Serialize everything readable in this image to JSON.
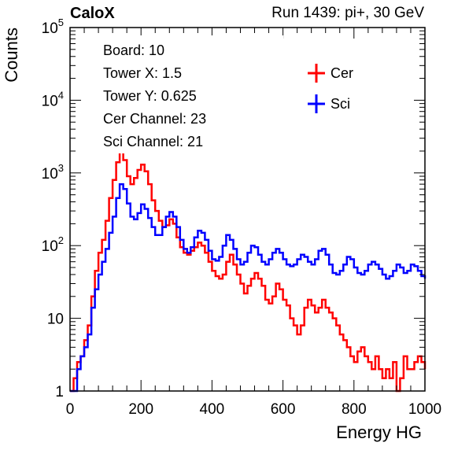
{
  "header": {
    "brand": "CaloX",
    "run_info": "Run 1439: pi+, 30 GeV"
  },
  "info_box": {
    "lines": [
      "Board: 10",
      "Tower X: 1.5",
      "Tower Y: 0.625",
      "Cer Channel: 23",
      "Sci Channel: 21"
    ]
  },
  "chart_data": {
    "type": "line",
    "xlabel": "Energy HG",
    "ylabel": "Counts",
    "xlim": [
      0,
      1000
    ],
    "ylim": [
      1,
      100000
    ],
    "y_scale": "log",
    "grid": false,
    "legend_position": "top-right",
    "x_ticks": [
      "0",
      "200",
      "400",
      "600",
      "800",
      "1000"
    ],
    "y_ticks": [
      {
        "value": 1,
        "base": "1",
        "exp": ""
      },
      {
        "value": 10,
        "base": "10",
        "exp": ""
      },
      {
        "value": 100,
        "base": "10",
        "exp": "2"
      },
      {
        "value": 1000,
        "base": "10",
        "exp": "3"
      },
      {
        "value": 10000,
        "base": "10",
        "exp": "4"
      },
      {
        "value": 100000,
        "base": "10",
        "exp": "5"
      }
    ],
    "series": [
      {
        "name": "Cer",
        "color": "#ff0000",
        "points": [
          [
            0,
            0.5
          ],
          [
            10,
            1.5
          ],
          [
            20,
            2.5
          ],
          [
            30,
            3
          ],
          [
            40,
            5
          ],
          [
            50,
            8
          ],
          [
            60,
            20
          ],
          [
            70,
            45
          ],
          [
            80,
            80
          ],
          [
            90,
            120
          ],
          [
            100,
            220
          ],
          [
            110,
            450
          ],
          [
            120,
            800
          ],
          [
            130,
            1400
          ],
          [
            140,
            2000
          ],
          [
            150,
            1500
          ],
          [
            160,
            900
          ],
          [
            170,
            700
          ],
          [
            180,
            850
          ],
          [
            190,
            1100
          ],
          [
            200,
            1300
          ],
          [
            210,
            1050
          ],
          [
            220,
            700
          ],
          [
            230,
            420
          ],
          [
            240,
            300
          ],
          [
            250,
            220
          ],
          [
            260,
            180
          ],
          [
            270,
            190
          ],
          [
            280,
            230
          ],
          [
            290,
            200
          ],
          [
            300,
            130
          ],
          [
            310,
            95
          ],
          [
            320,
            80
          ],
          [
            330,
            75
          ],
          [
            340,
            85
          ],
          [
            350,
            95
          ],
          [
            360,
            110
          ],
          [
            370,
            100
          ],
          [
            380,
            80
          ],
          [
            390,
            60
          ],
          [
            400,
            45
          ],
          [
            410,
            38
          ],
          [
            420,
            35
          ],
          [
            430,
            40
          ],
          [
            440,
            60
          ],
          [
            450,
            75
          ],
          [
            460,
            55
          ],
          [
            470,
            40
          ],
          [
            480,
            30
          ],
          [
            490,
            22
          ],
          [
            500,
            28
          ],
          [
            510,
            35
          ],
          [
            520,
            42
          ],
          [
            530,
            35
          ],
          [
            540,
            28
          ],
          [
            550,
            18
          ],
          [
            560,
            16
          ],
          [
            570,
            20
          ],
          [
            580,
            30
          ],
          [
            590,
            25
          ],
          [
            600,
            18
          ],
          [
            610,
            15
          ],
          [
            620,
            10
          ],
          [
            630,
            8
          ],
          [
            640,
            6
          ],
          [
            650,
            8
          ],
          [
            660,
            14
          ],
          [
            670,
            18
          ],
          [
            680,
            15
          ],
          [
            690,
            12
          ],
          [
            700,
            14
          ],
          [
            710,
            18
          ],
          [
            720,
            14
          ],
          [
            730,
            12
          ],
          [
            740,
            10
          ],
          [
            750,
            8
          ],
          [
            760,
            6
          ],
          [
            770,
            5
          ],
          [
            780,
            4
          ],
          [
            790,
            3
          ],
          [
            800,
            2.5
          ],
          [
            810,
            3.5
          ],
          [
            820,
            4
          ],
          [
            830,
            3
          ],
          [
            840,
            2.5
          ],
          [
            850,
            2
          ],
          [
            860,
            3
          ],
          [
            870,
            2
          ],
          [
            880,
            1.5
          ],
          [
            890,
            2
          ],
          [
            900,
            1.5
          ],
          [
            910,
            2.5
          ],
          [
            920,
            1
          ],
          [
            930,
            1.5
          ],
          [
            940,
            3
          ],
          [
            950,
            2
          ],
          [
            960,
            2
          ],
          [
            970,
            2.5
          ],
          [
            980,
            3
          ],
          [
            990,
            2.5
          ],
          [
            1000,
            2
          ]
        ]
      },
      {
        "name": "Sci",
        "color": "#0000ff",
        "points": [
          [
            0,
            0.5
          ],
          [
            10,
            1
          ],
          [
            20,
            2
          ],
          [
            30,
            3
          ],
          [
            40,
            4
          ],
          [
            50,
            6
          ],
          [
            60,
            14
          ],
          [
            70,
            25
          ],
          [
            80,
            40
          ],
          [
            90,
            60
          ],
          [
            100,
            90
          ],
          [
            110,
            150
          ],
          [
            120,
            250
          ],
          [
            130,
            450
          ],
          [
            140,
            700
          ],
          [
            150,
            600
          ],
          [
            160,
            380
          ],
          [
            170,
            250
          ],
          [
            180,
            230
          ],
          [
            190,
            280
          ],
          [
            200,
            370
          ],
          [
            210,
            320
          ],
          [
            220,
            240
          ],
          [
            230,
            180
          ],
          [
            240,
            140
          ],
          [
            250,
            140
          ],
          [
            260,
            180
          ],
          [
            270,
            250
          ],
          [
            280,
            290
          ],
          [
            290,
            250
          ],
          [
            300,
            180
          ],
          [
            310,
            120
          ],
          [
            320,
            90
          ],
          [
            330,
            80
          ],
          [
            340,
            95
          ],
          [
            350,
            130
          ],
          [
            360,
            160
          ],
          [
            370,
            150
          ],
          [
            380,
            120
          ],
          [
            390,
            85
          ],
          [
            400,
            65
          ],
          [
            410,
            62
          ],
          [
            420,
            70
          ],
          [
            430,
            100
          ],
          [
            440,
            140
          ],
          [
            450,
            120
          ],
          [
            460,
            90
          ],
          [
            470,
            65
          ],
          [
            480,
            55
          ],
          [
            490,
            60
          ],
          [
            500,
            80
          ],
          [
            510,
            100
          ],
          [
            520,
            95
          ],
          [
            530,
            75
          ],
          [
            540,
            60
          ],
          [
            550,
            55
          ],
          [
            560,
            65
          ],
          [
            570,
            80
          ],
          [
            580,
            90
          ],
          [
            590,
            80
          ],
          [
            600,
            65
          ],
          [
            610,
            55
          ],
          [
            620,
            52
          ],
          [
            630,
            55
          ],
          [
            640,
            65
          ],
          [
            650,
            75
          ],
          [
            660,
            70
          ],
          [
            670,
            60
          ],
          [
            680,
            55
          ],
          [
            690,
            65
          ],
          [
            700,
            85
          ],
          [
            710,
            90
          ],
          [
            720,
            75
          ],
          [
            730,
            55
          ],
          [
            740,
            42
          ],
          [
            750,
            40
          ],
          [
            760,
            45
          ],
          [
            770,
            55
          ],
          [
            780,
            70
          ],
          [
            790,
            65
          ],
          [
            800,
            50
          ],
          [
            810,
            42
          ],
          [
            820,
            40
          ],
          [
            830,
            45
          ],
          [
            840,
            55
          ],
          [
            850,
            60
          ],
          [
            860,
            55
          ],
          [
            870,
            48
          ],
          [
            880,
            40
          ],
          [
            890,
            35
          ],
          [
            900,
            38
          ],
          [
            910,
            45
          ],
          [
            920,
            55
          ],
          [
            930,
            50
          ],
          [
            940,
            42
          ],
          [
            950,
            45
          ],
          [
            960,
            55
          ],
          [
            970,
            52
          ],
          [
            980,
            45
          ],
          [
            990,
            38
          ],
          [
            1000,
            35
          ]
        ]
      }
    ]
  }
}
